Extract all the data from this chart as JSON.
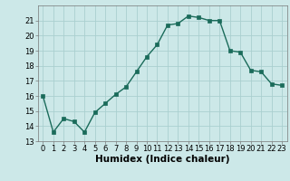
{
  "x": [
    0,
    1,
    2,
    3,
    4,
    5,
    6,
    7,
    8,
    9,
    10,
    11,
    12,
    13,
    14,
    15,
    16,
    17,
    18,
    19,
    20,
    21,
    22,
    23
  ],
  "y": [
    16.0,
    13.6,
    14.5,
    14.3,
    13.6,
    14.9,
    15.5,
    16.1,
    16.6,
    17.6,
    18.6,
    19.4,
    20.7,
    20.8,
    21.3,
    21.2,
    21.0,
    21.0,
    19.0,
    18.9,
    17.7,
    17.6,
    16.8,
    16.7
  ],
  "xlabel": "Humidex (Indice chaleur)",
  "bg_color": "#cce8e8",
  "line_color": "#1a6b5a",
  "marker": "s",
  "markersize": 2.5,
  "linewidth": 1.0,
  "ylim": [
    13,
    22
  ],
  "yticks": [
    13,
    14,
    15,
    16,
    17,
    18,
    19,
    20,
    21
  ],
  "xticks": [
    0,
    1,
    2,
    3,
    4,
    5,
    6,
    7,
    8,
    9,
    10,
    11,
    12,
    13,
    14,
    15,
    16,
    17,
    18,
    19,
    20,
    21,
    22,
    23
  ],
  "grid_color": "#aacfcf",
  "tick_fontsize": 6,
  "xlabel_fontsize": 7.5
}
